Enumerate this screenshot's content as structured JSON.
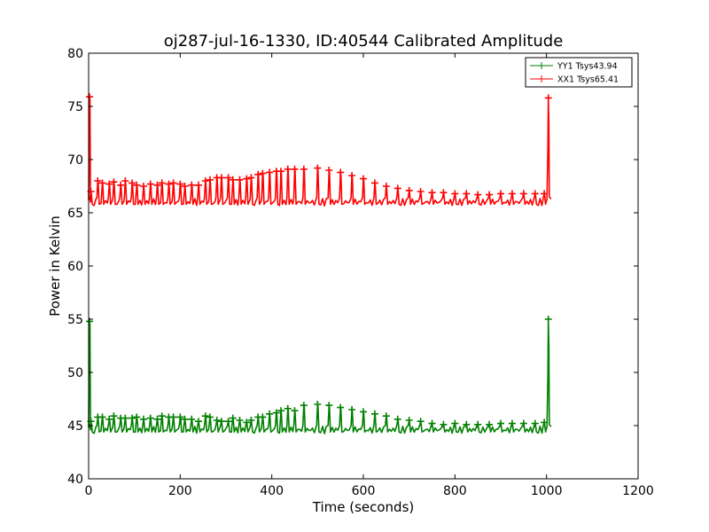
{
  "chart_data": {
    "type": "line",
    "title": "oj287-jul-16-1330, ID:40544 Calibrated Amplitude",
    "xlabel": "Time (seconds)",
    "ylabel": "Power in Kelvin",
    "xlim": [
      0,
      1200
    ],
    "ylim": [
      40,
      80
    ],
    "xticks": [
      "0",
      "200",
      "400",
      "600",
      "800",
      "1000",
      "1200"
    ],
    "yticks": [
      "40",
      "45",
      "50",
      "55",
      "60",
      "65",
      "70",
      "75",
      "80"
    ],
    "grid": false,
    "legend_position": "top-right",
    "marker": "+",
    "series": [
      {
        "name": "YY1 Tsys43.94",
        "color": "#008000",
        "baseline": 44.6,
        "start_spike": 54.8,
        "end_spike": 55.0,
        "peaks": [
          [
            5,
            45.4
          ],
          [
            20,
            45.8
          ],
          [
            30,
            45.8
          ],
          [
            45,
            45.6
          ],
          [
            55,
            45.9
          ],
          [
            70,
            45.7
          ],
          [
            80,
            45.7
          ],
          [
            95,
            45.7
          ],
          [
            105,
            45.8
          ],
          [
            120,
            45.6
          ],
          [
            135,
            45.7
          ],
          [
            150,
            45.6
          ],
          [
            160,
            45.9
          ],
          [
            175,
            45.8
          ],
          [
            185,
            45.8
          ],
          [
            200,
            45.8
          ],
          [
            210,
            45.6
          ],
          [
            225,
            45.6
          ],
          [
            240,
            45.4
          ],
          [
            255,
            45.9
          ],
          [
            265,
            45.8
          ],
          [
            280,
            45.5
          ],
          [
            290,
            45.4
          ],
          [
            305,
            45.4
          ],
          [
            315,
            45.7
          ],
          [
            330,
            45.5
          ],
          [
            345,
            45.3
          ],
          [
            355,
            45.5
          ],
          [
            370,
            45.8
          ],
          [
            380,
            45.8
          ],
          [
            395,
            46.1
          ],
          [
            410,
            46.2
          ],
          [
            420,
            46.4
          ],
          [
            435,
            46.6
          ],
          [
            450,
            46.4
          ],
          [
            470,
            46.9
          ],
          [
            500,
            47.0
          ],
          [
            525,
            46.9
          ],
          [
            550,
            46.7
          ],
          [
            575,
            46.5
          ],
          [
            600,
            46.3
          ],
          [
            625,
            46.1
          ],
          [
            650,
            45.9
          ],
          [
            675,
            45.6
          ],
          [
            700,
            45.5
          ],
          [
            725,
            45.4
          ],
          [
            750,
            45.2
          ],
          [
            775,
            45.1
          ],
          [
            800,
            45.2
          ],
          [
            825,
            45.1
          ],
          [
            850,
            45.1
          ],
          [
            875,
            45.1
          ],
          [
            900,
            45.2
          ],
          [
            925,
            45.2
          ],
          [
            950,
            45.2
          ],
          [
            975,
            45.2
          ],
          [
            995,
            45.3
          ]
        ]
      },
      {
        "name": "XX1 Tsys65.41",
        "color": "#ff0000",
        "baseline": 66.0,
        "start_spike": 75.9,
        "end_spike": 75.8,
        "peaks": [
          [
            5,
            67.0
          ],
          [
            20,
            68.0
          ],
          [
            30,
            67.8
          ],
          [
            45,
            67.7
          ],
          [
            55,
            67.9
          ],
          [
            70,
            67.6
          ],
          [
            80,
            68.0
          ],
          [
            95,
            67.8
          ],
          [
            105,
            67.6
          ],
          [
            120,
            67.5
          ],
          [
            135,
            67.7
          ],
          [
            150,
            67.6
          ],
          [
            160,
            67.8
          ],
          [
            175,
            67.7
          ],
          [
            185,
            67.8
          ],
          [
            200,
            67.7
          ],
          [
            210,
            67.5
          ],
          [
            225,
            67.6
          ],
          [
            240,
            67.6
          ],
          [
            255,
            68.0
          ],
          [
            265,
            68.1
          ],
          [
            280,
            68.3
          ],
          [
            290,
            68.3
          ],
          [
            305,
            68.3
          ],
          [
            315,
            68.1
          ],
          [
            330,
            68.1
          ],
          [
            345,
            68.2
          ],
          [
            355,
            68.3
          ],
          [
            370,
            68.6
          ],
          [
            380,
            68.7
          ],
          [
            395,
            68.8
          ],
          [
            410,
            68.9
          ],
          [
            420,
            68.9
          ],
          [
            435,
            69.1
          ],
          [
            450,
            69.1
          ],
          [
            470,
            69.1
          ],
          [
            500,
            69.2
          ],
          [
            525,
            69.0
          ],
          [
            550,
            68.8
          ],
          [
            575,
            68.5
          ],
          [
            600,
            68.2
          ],
          [
            625,
            67.8
          ],
          [
            650,
            67.5
          ],
          [
            675,
            67.3
          ],
          [
            700,
            67.1
          ],
          [
            725,
            67.0
          ],
          [
            750,
            66.9
          ],
          [
            775,
            66.9
          ],
          [
            800,
            66.8
          ],
          [
            825,
            66.8
          ],
          [
            850,
            66.7
          ],
          [
            875,
            66.7
          ],
          [
            900,
            66.8
          ],
          [
            925,
            66.8
          ],
          [
            950,
            66.8
          ],
          [
            975,
            66.8
          ],
          [
            995,
            66.8
          ]
        ]
      }
    ]
  }
}
